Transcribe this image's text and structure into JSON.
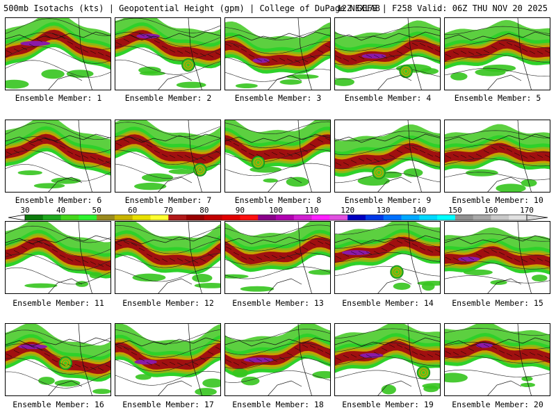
{
  "header": {
    "left_title": "500mb Isotachs (kts) | Geopotential Height (gpm) | College of DuPage NEXLAB",
    "right_title": "12Z GEFS | F258 Valid: 06Z THU NOV 20 2025"
  },
  "members": [
    {
      "label": "Ensemble Member: 1"
    },
    {
      "label": "Ensemble Member: 2"
    },
    {
      "label": "Ensemble Member: 3"
    },
    {
      "label": "Ensemble Member: 4"
    },
    {
      "label": "Ensemble Member: 5"
    },
    {
      "label": "Ensemble Member: 6"
    },
    {
      "label": "Ensemble Member: 7"
    },
    {
      "label": "Ensemble Member: 8"
    },
    {
      "label": "Ensemble Member: 9"
    },
    {
      "label": "Ensemble Member: 10"
    },
    {
      "label": "Ensemble Member: 11"
    },
    {
      "label": "Ensemble Member: 12"
    },
    {
      "label": "Ensemble Member: 13"
    },
    {
      "label": "Ensemble Member: 14"
    },
    {
      "label": "Ensemble Member: 15"
    },
    {
      "label": "Ensemble Member: 16"
    },
    {
      "label": "Ensemble Member: 17"
    },
    {
      "label": "Ensemble Member: 18"
    },
    {
      "label": "Ensemble Member: 19"
    },
    {
      "label": "Ensemble Member: 20"
    }
  ],
  "colorbar": {
    "tick_labels": [
      "30",
      "40",
      "50",
      "60",
      "70",
      "80",
      "90",
      "100",
      "110",
      "120",
      "130",
      "140",
      "150",
      "160",
      "170"
    ],
    "colors": [
      "#0c7a0c",
      "#1ea81e",
      "#44d61c",
      "#2ef22e",
      "#9a8a1e",
      "#c8b400",
      "#e8e000",
      "#ffff30",
      "#b01818",
      "#980000",
      "#c00000",
      "#e00000",
      "#ff1010",
      "#8a008a",
      "#b000b0",
      "#d020d0",
      "#ff20ff",
      "#e050e0",
      "#0000c0",
      "#0038e8",
      "#0070ff",
      "#00a8ff",
      "#00d8ff",
      "#00ffff",
      "#909090",
      "#a8a8a8",
      "#c8c8c8",
      "#e0e0e0"
    ]
  }
}
